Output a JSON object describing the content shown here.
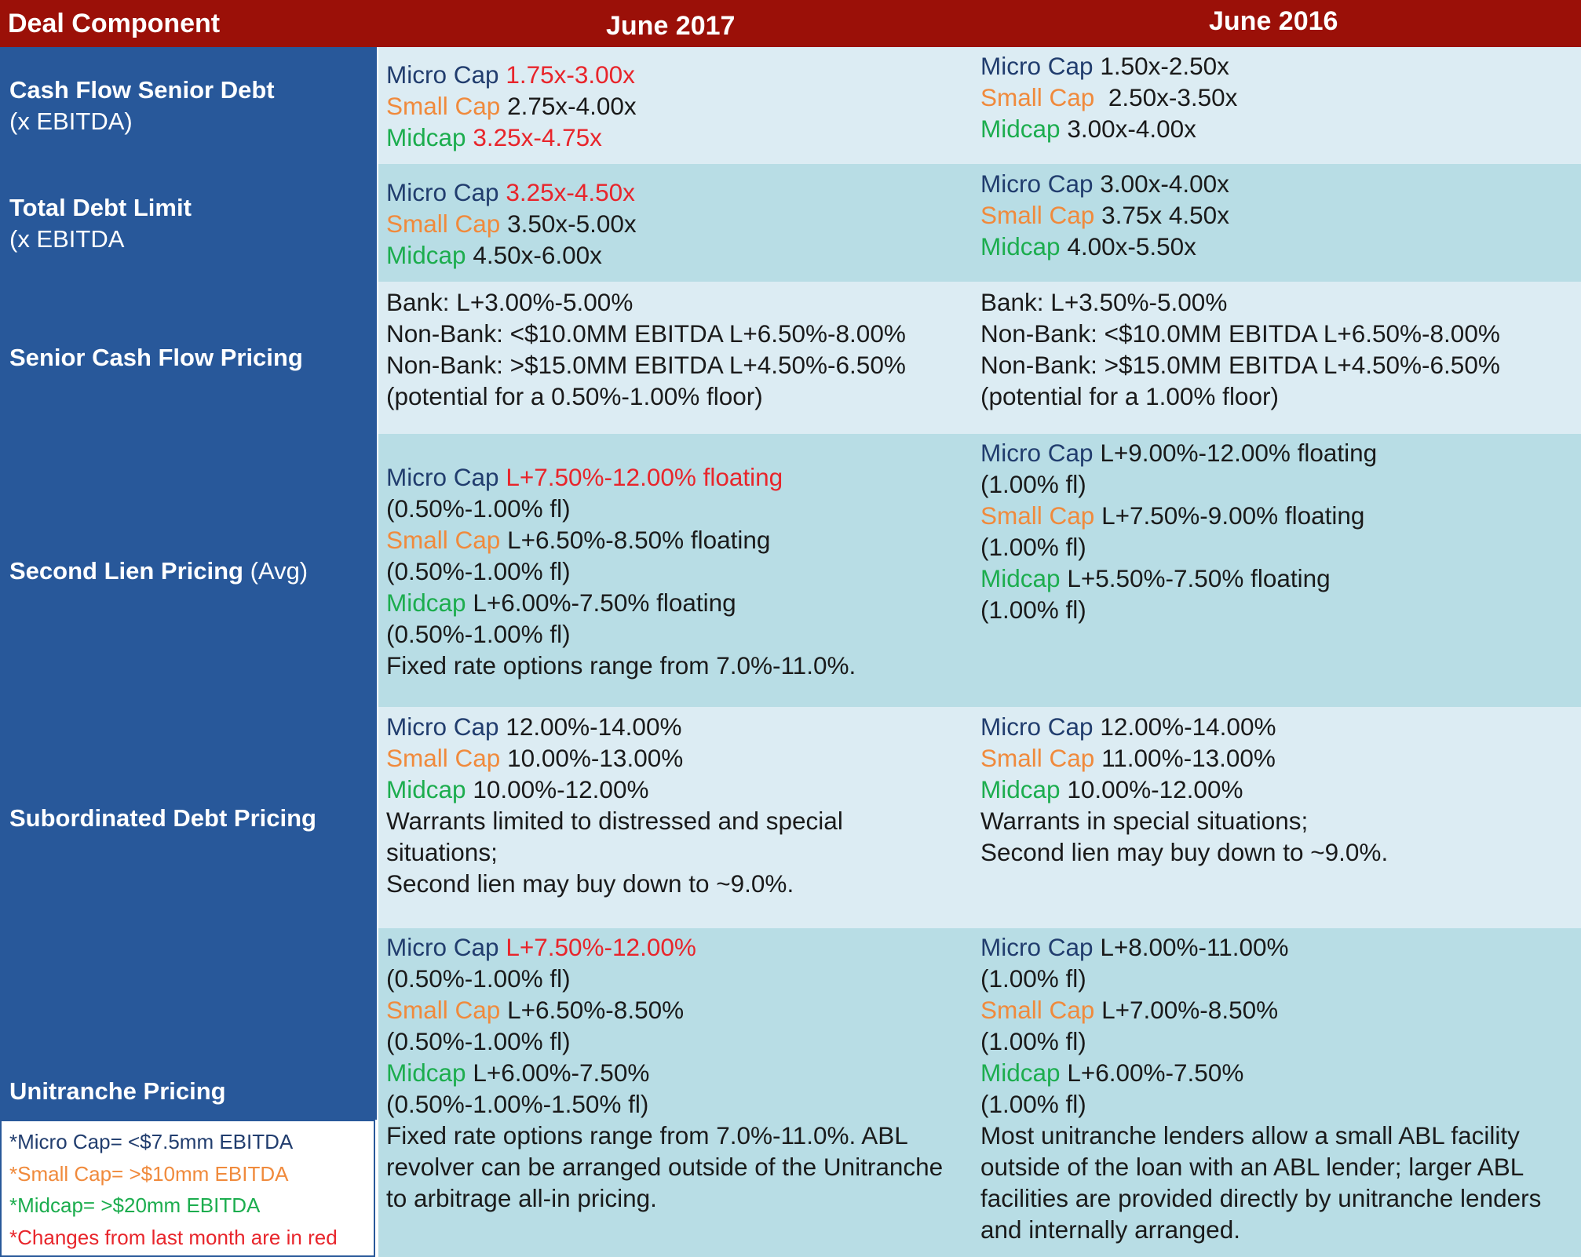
{
  "colors": {
    "header_bg": "#9b1008",
    "label_bg": "#28589a",
    "row_light": "#dcecf3",
    "row_dark": "#b8dde5",
    "micro_cap": "#213d6e",
    "small_cap": "#f08a3c",
    "midcap": "#1cad4e",
    "changed_red": "#e8252b"
  },
  "header": {
    "deal_component": "Deal Component",
    "june_2017": "June 2017",
    "june_2016": "June 2016"
  },
  "labels": {
    "cash_flow_senior_debt": "Cash Flow Senior Debt",
    "cash_flow_senior_debt_sub": "(x EBITDA)",
    "total_debt_limit": "Total Debt Limit",
    "total_debt_limit_sub": "(x EBITDA",
    "senior_cash_flow_pricing": "Senior Cash Flow Pricing",
    "second_lien_pricing": "Second Lien Pricing",
    "second_lien_pricing_sub": "(Avg)",
    "subordinated_debt_pricing": "Subordinated Debt Pricing",
    "unitranche_pricing": "Unitranche Pricing"
  },
  "legend": {
    "micro": "*Micro Cap= <$7.5mm EBITDA",
    "small": "*Small Cap= >$10mm EBITDA",
    "mid": "*Midcap= >$20mm EBITDA",
    "changes": "*Changes from last month are in red"
  },
  "tiers": {
    "micro": "Micro Cap",
    "small": "Small Cap",
    "mid": "Midcap"
  },
  "rows": {
    "cash_flow": {
      "y2017": {
        "micro": "1.75x-3.00x",
        "small": "2.75x-4.00x",
        "mid": "3.25x-4.75x"
      },
      "y2016": {
        "micro": "1.50x-2.50x",
        "small": " 2.50x-3.50x",
        "mid": "3.00x-4.00x"
      }
    },
    "total_debt": {
      "y2017": {
        "micro": "3.25x-4.50x",
        "small": "3.50x-5.00x",
        "mid": "4.50x-6.00x"
      },
      "y2016": {
        "micro": "3.00x-4.00x",
        "small": "3.75x 4.50x",
        "mid": "4.00x-5.50x"
      }
    },
    "senior_pricing": {
      "y2017": [
        "Bank: L+3.00%-5.00%",
        "Non-Bank: <$10.0MM EBITDA L+6.50%-8.00%",
        "Non-Bank: >$15.0MM EBITDA L+4.50%-6.50%",
        "(potential for a 0.50%-1.00% floor)"
      ],
      "y2016": [
        "Bank: L+3.50%-5.00%",
        "Non-Bank: <$10.0MM EBITDA L+6.50%-8.00%",
        "Non-Bank: >$15.0MM EBITDA L+4.50%-6.50%",
        "(potential for a 1.00% floor)"
      ]
    },
    "second_lien": {
      "y2017": {
        "micro": "L+7.50%-12.00% floating",
        "micro_fl": "(0.50%-1.00% fl)",
        "small": "L+6.50%-8.50% floating",
        "small_fl": "(0.50%-1.00% fl)",
        "mid": "L+6.00%-7.50% floating",
        "mid_fl": "(0.50%-1.00% fl)",
        "note": "Fixed rate options range from 7.0%-11.0%."
      },
      "y2016": {
        "micro": "L+9.00%-12.00% floating",
        "micro_fl": "(1.00% fl)",
        "small": "L+7.50%-9.00% floating",
        "small_fl": "(1.00% fl)",
        "mid": "L+5.50%-7.50% floating",
        "mid_fl": "(1.00% fl)"
      }
    },
    "subordinated": {
      "y2017": {
        "micro": "12.00%-14.00%",
        "small": "10.00%-13.00%",
        "mid": "10.00%-12.00%",
        "note1": "Warrants limited to distressed and special",
        "note2": "situations;",
        "note3": "Second lien may buy down to ~9.0%."
      },
      "y2016": {
        "micro": "12.00%-14.00%",
        "small": "11.00%-13.00%",
        "mid": "10.00%-12.00%",
        "note1": "Warrants in special situations;",
        "note2": "Second lien may buy down to ~9.0%."
      }
    },
    "unitranche": {
      "y2017": {
        "micro": "L+7.50%-12.00%",
        "micro_fl": "(0.50%-1.00% fl)",
        "small": "L+6.50%-8.50%",
        "small_fl": "(0.50%-1.00% fl)",
        "mid": "L+6.00%-7.50%",
        "mid_fl": "(0.50%-1.00%-1.50% fl)",
        "note1": "Fixed rate options range from 7.0%-11.0%. ABL",
        "note2": "revolver can be arranged outside of the Unitranche",
        "note3": "to arbitrage all-in pricing."
      },
      "y2016": {
        "micro": "L+8.00%-11.00%",
        "micro_fl": "(1.00% fl)",
        "small": "L+7.00%-8.50%",
        "small_fl": "(1.00% fl)",
        "mid": "L+6.00%-7.50%",
        "mid_fl": "(1.00% fl)",
        "note1": "Most unitranche lenders allow a small ABL facility",
        "note2": "outside of the loan with an ABL lender; larger ABL",
        "note3": "facilities are provided directly by unitranche lenders",
        "note4": "and internally arranged."
      }
    }
  }
}
